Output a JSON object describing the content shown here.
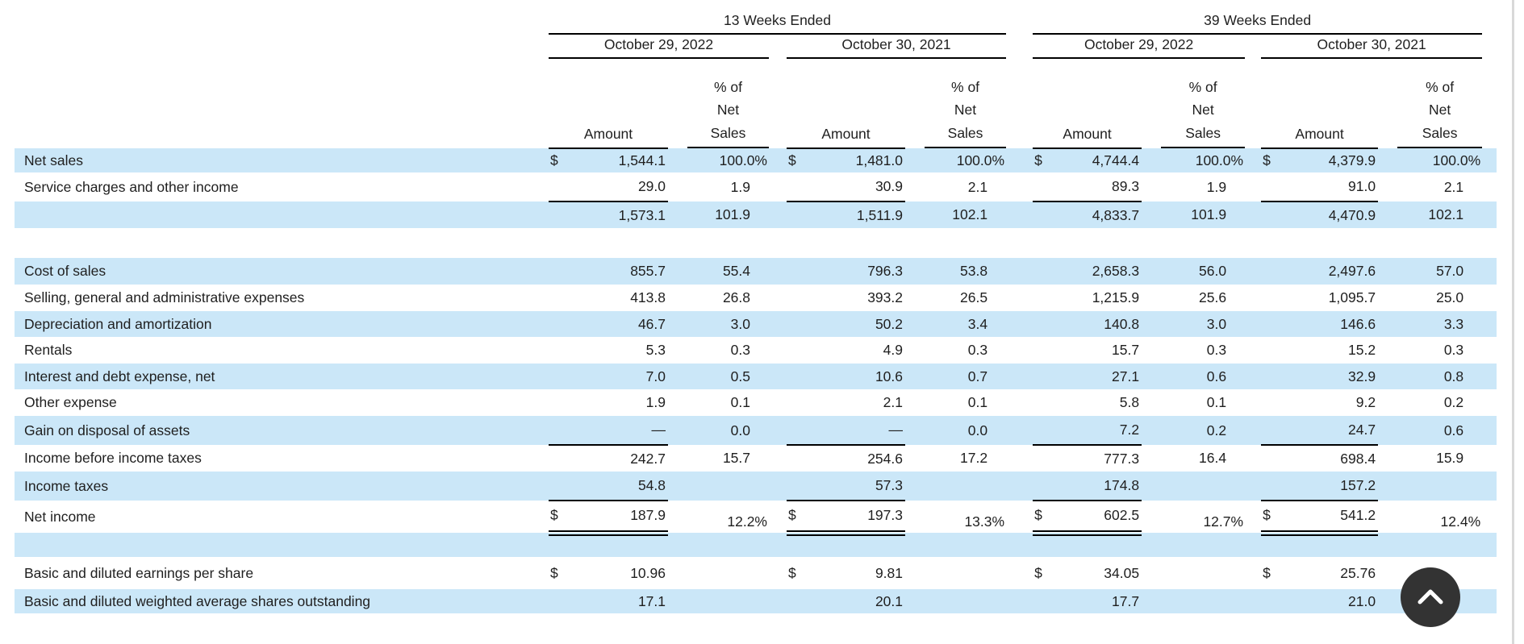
{
  "header": {
    "groups": [
      {
        "label": "13 Weeks Ended",
        "dates": [
          "October 29, 2022",
          "October 30, 2021"
        ]
      },
      {
        "label": "39 Weeks Ended",
        "dates": [
          "October 29, 2022",
          "October 30, 2021"
        ]
      }
    ],
    "pct_header_lines": [
      "% of",
      "Net",
      "Sales"
    ],
    "amount_header": "Amount"
  },
  "rows": [
    {
      "type": "data",
      "label": "Net sales",
      "stripe": true,
      "dollar": true,
      "cells": [
        "1,544.1",
        "100.0%",
        "1,481.0",
        "100.0%",
        "4,744.4",
        "100.0%",
        "4,379.9",
        "100.0%"
      ]
    },
    {
      "type": "data",
      "label": "Service charges and other income",
      "stripe": false,
      "rule": "single",
      "cells": [
        "29.0",
        "1.9",
        "30.9",
        "2.1",
        "89.3",
        "1.9",
        "91.0",
        "2.1"
      ]
    },
    {
      "type": "data",
      "label": "",
      "stripe": true,
      "cells": [
        "1,573.1",
        "101.9",
        "1,511.9",
        "102.1",
        "4,833.7",
        "101.9",
        "4,470.9",
        "102.1"
      ]
    },
    {
      "type": "spacer"
    },
    {
      "type": "data",
      "label": "Cost of sales",
      "stripe": true,
      "cells": [
        "855.7",
        "55.4",
        "796.3",
        "53.8",
        "2,658.3",
        "56.0",
        "2,497.6",
        "57.0"
      ]
    },
    {
      "type": "data",
      "label": "Selling, general and administrative expenses",
      "stripe": false,
      "cells": [
        "413.8",
        "26.8",
        "393.2",
        "26.5",
        "1,215.9",
        "25.6",
        "1,095.7",
        "25.0"
      ]
    },
    {
      "type": "data",
      "label": "Depreciation and amortization",
      "stripe": true,
      "cells": [
        "46.7",
        "3.0",
        "50.2",
        "3.4",
        "140.8",
        "3.0",
        "146.6",
        "3.3"
      ]
    },
    {
      "type": "data",
      "label": "Rentals",
      "stripe": false,
      "cells": [
        "5.3",
        "0.3",
        "4.9",
        "0.3",
        "15.7",
        "0.3",
        "15.2",
        "0.3"
      ]
    },
    {
      "type": "data",
      "label": "Interest and debt expense, net",
      "stripe": true,
      "cells": [
        "7.0",
        "0.5",
        "10.6",
        "0.7",
        "27.1",
        "0.6",
        "32.9",
        "0.8"
      ]
    },
    {
      "type": "data",
      "label": "Other expense",
      "stripe": false,
      "cells": [
        "1.9",
        "0.1",
        "2.1",
        "0.1",
        "5.8",
        "0.1",
        "9.2",
        "0.2"
      ]
    },
    {
      "type": "data",
      "label": "Gain on disposal of assets",
      "stripe": true,
      "rule": "single",
      "cells": [
        "—",
        "0.0",
        "—",
        "0.0",
        "7.2",
        "0.2",
        "24.7",
        "0.6"
      ]
    },
    {
      "type": "data",
      "label": "Income before income taxes",
      "stripe": false,
      "cells": [
        "242.7",
        "15.7",
        "254.6",
        "17.2",
        "777.3",
        "16.4",
        "698.4",
        "15.9"
      ]
    },
    {
      "type": "data",
      "label": "Income taxes",
      "stripe": true,
      "rule": "single",
      "cells": [
        "54.8",
        "",
        "57.3",
        "",
        "174.8",
        "",
        "157.2",
        ""
      ]
    },
    {
      "type": "data",
      "label": "Net income",
      "stripe": false,
      "dollar": true,
      "rule": "double",
      "pct_offset": true,
      "cells": [
        "187.9",
        "12.2%",
        "197.3",
        "13.3%",
        "602.5",
        "12.7%",
        "541.2",
        "12.4%"
      ]
    },
    {
      "type": "blank",
      "stripe": true
    },
    {
      "type": "data",
      "label": "Basic and diluted earnings per share",
      "stripe": false,
      "dollar": true,
      "cells": [
        "10.96",
        "",
        "9.81",
        "",
        "34.05",
        "",
        "25.76",
        ""
      ]
    },
    {
      "type": "data",
      "label": "Basic and diluted weighted average shares outstanding",
      "stripe": true,
      "cells": [
        "17.1",
        "",
        "20.1",
        "",
        "17.7",
        "",
        "21.0",
        ""
      ]
    }
  ],
  "scroll_top": {
    "icon": "chevron-up"
  },
  "colors": {
    "stripe": "#cbe7f8",
    "line": "#000000",
    "button": "#333333"
  }
}
